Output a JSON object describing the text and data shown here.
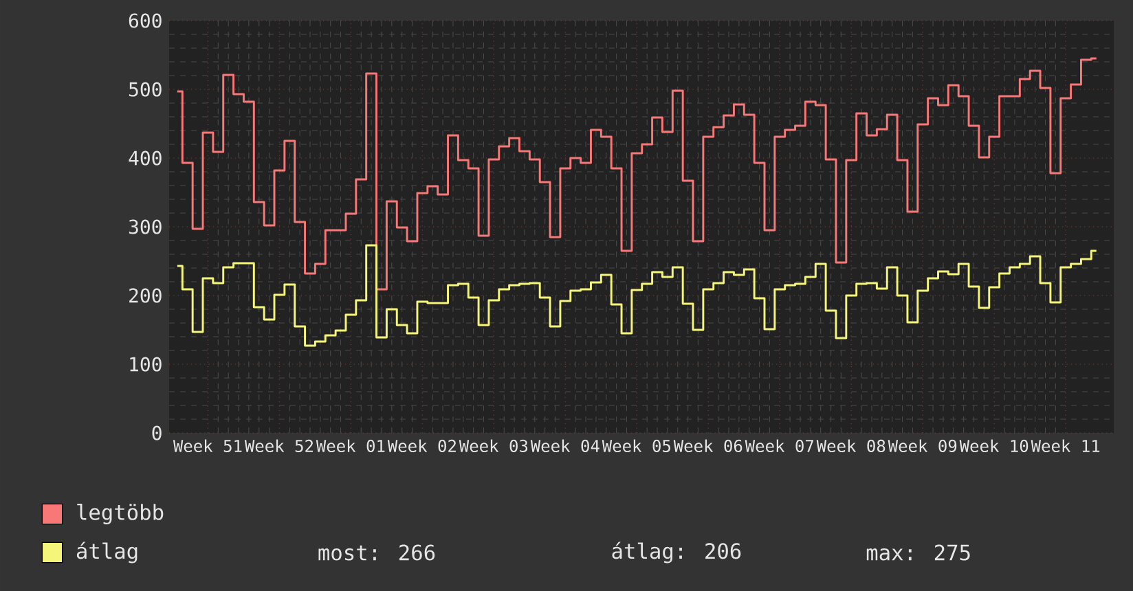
{
  "chart_data": {
    "type": "step",
    "categories": [
      null,
      null,
      null,
      "Week 51",
      null,
      null,
      null,
      null,
      null,
      null,
      "Week 52",
      null,
      null,
      null,
      null,
      null,
      null,
      "Week 01",
      null,
      null,
      null,
      null,
      null,
      null,
      "Week 02",
      null,
      null,
      null,
      null,
      null,
      null,
      "Week 03",
      null,
      null,
      null,
      null,
      null,
      null,
      "Week 04",
      null,
      null,
      null,
      null,
      null,
      null,
      "Week 05",
      null,
      null,
      null,
      null,
      null,
      null,
      "Week 06",
      null,
      null,
      null,
      null,
      null,
      null,
      "Week 07",
      null,
      null,
      null,
      null,
      null,
      null,
      "Week 08",
      null,
      null,
      null,
      null,
      null,
      null,
      "Week 09",
      null,
      null,
      null,
      null,
      null,
      null,
      "Week 10",
      null,
      null,
      null,
      null,
      null,
      null,
      "Week 11",
      null,
      null,
      null
    ],
    "series": [
      {
        "name": "legtöbb",
        "color": "#f87878",
        "values": [
          497,
          393,
          297,
          437,
          409,
          521,
          493,
          482,
          336,
          302,
          382,
          425,
          307,
          232,
          246,
          295,
          295,
          319,
          369,
          523,
          209,
          337,
          299,
          279,
          349,
          359,
          347,
          433,
          397,
          385,
          287,
          398,
          417,
          429,
          410,
          398,
          365,
          285,
          385,
          400,
          393,
          441,
          431,
          385,
          265,
          407,
          420,
          459,
          438,
          498,
          367,
          279,
          431,
          445,
          462,
          478,
          463,
          393,
          295,
          431,
          441,
          447,
          482,
          477,
          398,
          248,
          397,
          465,
          433,
          442,
          463,
          397,
          322,
          449,
          487,
          477,
          506,
          490,
          447,
          401,
          431,
          490,
          490,
          515,
          527,
          502,
          378,
          487,
          507,
          543,
          545
        ]
      },
      {
        "name": "átlag",
        "color": "#f5f57a",
        "values": [
          243,
          209,
          147,
          225,
          218,
          241,
          247,
          247,
          183,
          165,
          201,
          216,
          155,
          127,
          133,
          142,
          149,
          172,
          193,
          273,
          139,
          180,
          157,
          145,
          191,
          189,
          189,
          215,
          217,
          197,
          157,
          193,
          209,
          215,
          217,
          218,
          197,
          155,
          192,
          207,
          209,
          219,
          230,
          187,
          145,
          208,
          217,
          234,
          227,
          241,
          188,
          150,
          209,
          218,
          234,
          230,
          238,
          196,
          151,
          209,
          215,
          217,
          227,
          246,
          178,
          138,
          200,
          217,
          218,
          210,
          241,
          200,
          161,
          207,
          225,
          235,
          231,
          246,
          213,
          182,
          212,
          232,
          241,
          246,
          257,
          218,
          190,
          241,
          246,
          253,
          265
        ]
      }
    ],
    "ylim": [
      0,
      600
    ],
    "yticks": [
      0,
      100,
      200,
      300,
      400,
      500,
      600
    ],
    "grid": true,
    "legend": "bottom",
    "annotations": [
      "most: 266",
      "átlag: 206",
      "max: 275"
    ]
  }
}
